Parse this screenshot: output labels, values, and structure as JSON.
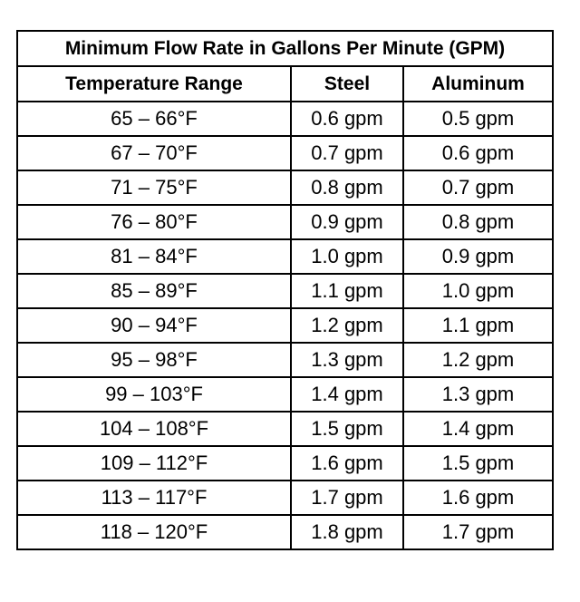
{
  "table": {
    "title": "Minimum Flow Rate in Gallons Per Minute (GPM)",
    "columns": [
      "Temperature Range",
      "Steel",
      "Aluminum"
    ],
    "rows": [
      {
        "range": "65 – 66°F",
        "steel": "0.6 gpm",
        "aluminum": "0.5 gpm"
      },
      {
        "range": "67 – 70°F",
        "steel": "0.7 gpm",
        "aluminum": "0.6 gpm"
      },
      {
        "range": "71 – 75°F",
        "steel": "0.8 gpm",
        "aluminum": "0.7 gpm"
      },
      {
        "range": "76 – 80°F",
        "steel": "0.9 gpm",
        "aluminum": "0.8 gpm"
      },
      {
        "range": "81 – 84°F",
        "steel": "1.0 gpm",
        "aluminum": "0.9 gpm"
      },
      {
        "range": "85 – 89°F",
        "steel": "1.1 gpm",
        "aluminum": "1.0 gpm"
      },
      {
        "range": "90 – 94°F",
        "steel": "1.2 gpm",
        "aluminum": "1.1 gpm"
      },
      {
        "range": "95 – 98°F",
        "steel": "1.3 gpm",
        "aluminum": "1.2 gpm"
      },
      {
        "range": "99 – 103°F",
        "steel": "1.4 gpm",
        "aluminum": "1.3 gpm"
      },
      {
        "range": "104 – 108°F",
        "steel": "1.5 gpm",
        "aluminum": "1.4 gpm"
      },
      {
        "range": "109 – 112°F",
        "steel": "1.6 gpm",
        "aluminum": "1.5 gpm"
      },
      {
        "range": "113 – 117°F",
        "steel": "1.7 gpm",
        "aluminum": "1.6 gpm"
      },
      {
        "range": "118 – 120°F",
        "steel": "1.8 gpm",
        "aluminum": "1.7 gpm"
      }
    ]
  }
}
